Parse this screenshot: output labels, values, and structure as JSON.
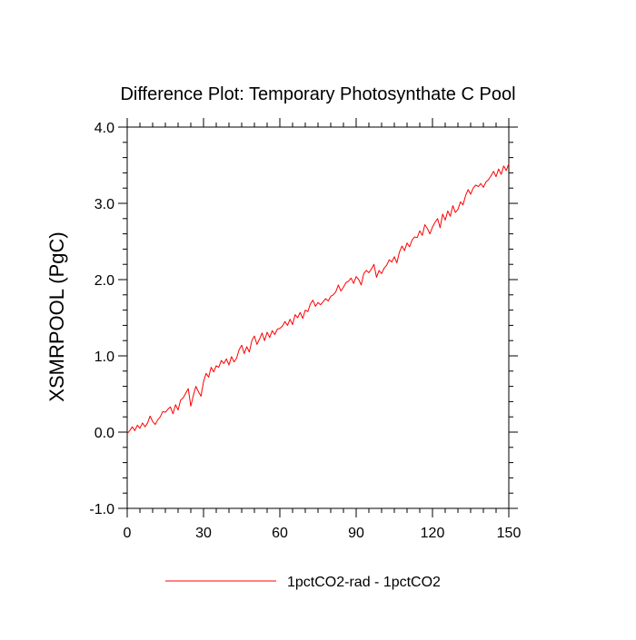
{
  "chart_data": {
    "type": "line",
    "title": "Difference Plot: Temporary Photosynthate C Pool",
    "ylabel": "XSMRPOOL  (PgC)",
    "xlabel": "",
    "xlim": [
      0,
      150
    ],
    "ylim": [
      -1.0,
      4.0
    ],
    "x_ticks": [
      0,
      30,
      60,
      90,
      120,
      150
    ],
    "x_tick_labels": [
      "0",
      "30",
      "60",
      "90",
      "120",
      "150"
    ],
    "y_ticks": [
      -1.0,
      0.0,
      1.0,
      2.0,
      3.0,
      4.0
    ],
    "y_tick_labels": [
      "-1.0",
      "0.0",
      "1.0",
      "2.0",
      "3.0",
      "4.0"
    ],
    "grid": false,
    "legend_position": "bottom",
    "series": [
      {
        "name": "1pctCO2-rad - 1pctCO2",
        "color": "#ff0000",
        "x": [
          0,
          1,
          2,
          3,
          4,
          5,
          6,
          7,
          8,
          9,
          10,
          11,
          12,
          13,
          14,
          15,
          16,
          17,
          18,
          19,
          20,
          21,
          22,
          23,
          24,
          25,
          26,
          27,
          28,
          29,
          30,
          31,
          32,
          33,
          34,
          35,
          36,
          37,
          38,
          39,
          40,
          41,
          42,
          43,
          44,
          45,
          46,
          47,
          48,
          49,
          50,
          51,
          52,
          53,
          54,
          55,
          56,
          57,
          58,
          59,
          60,
          61,
          62,
          63,
          64,
          65,
          66,
          67,
          68,
          69,
          70,
          71,
          72,
          73,
          74,
          75,
          76,
          77,
          78,
          79,
          80,
          81,
          82,
          83,
          84,
          85,
          86,
          87,
          88,
          89,
          90,
          91,
          92,
          93,
          94,
          95,
          96,
          97,
          98,
          99,
          100,
          101,
          102,
          103,
          104,
          105,
          106,
          107,
          108,
          109,
          110,
          111,
          112,
          113,
          114,
          115,
          116,
          117,
          118,
          119,
          120,
          121,
          122,
          123,
          124,
          125,
          126,
          127,
          128,
          129,
          130,
          131,
          132,
          133,
          134,
          135,
          136,
          137,
          138,
          139,
          140,
          141,
          142,
          143,
          144,
          145,
          146,
          147,
          148,
          149,
          150
        ],
        "y": [
          -0.02,
          0.02,
          0.07,
          0.02,
          0.09,
          0.05,
          0.12,
          0.07,
          0.12,
          0.21,
          0.14,
          0.1,
          0.16,
          0.2,
          0.27,
          0.26,
          0.3,
          0.33,
          0.24,
          0.36,
          0.29,
          0.42,
          0.45,
          0.51,
          0.57,
          0.34,
          0.48,
          0.6,
          0.53,
          0.47,
          0.66,
          0.77,
          0.72,
          0.85,
          0.79,
          0.87,
          0.85,
          0.94,
          0.9,
          0.96,
          0.88,
          0.99,
          0.92,
          0.97,
          1.08,
          1.14,
          1.03,
          1.12,
          1.05,
          1.2,
          1.26,
          1.15,
          1.22,
          1.3,
          1.2,
          1.31,
          1.24,
          1.33,
          1.28,
          1.35,
          1.36,
          1.39,
          1.45,
          1.4,
          1.48,
          1.41,
          1.54,
          1.5,
          1.57,
          1.49,
          1.6,
          1.58,
          1.68,
          1.73,
          1.65,
          1.7,
          1.67,
          1.71,
          1.75,
          1.72,
          1.78,
          1.8,
          1.84,
          1.93,
          1.85,
          1.9,
          1.96,
          1.98,
          2.02,
          1.95,
          2.04,
          2.0,
          1.93,
          2.08,
          2.12,
          2.09,
          2.14,
          2.2,
          2.03,
          2.12,
          2.08,
          2.15,
          2.19,
          2.26,
          2.23,
          2.3,
          2.22,
          2.36,
          2.44,
          2.38,
          2.48,
          2.43,
          2.52,
          2.56,
          2.55,
          2.64,
          2.58,
          2.72,
          2.67,
          2.6,
          2.69,
          2.75,
          2.8,
          2.68,
          2.86,
          2.78,
          2.9,
          2.83,
          2.97,
          2.88,
          2.92,
          3.02,
          2.98,
          3.1,
          3.18,
          3.12,
          3.2,
          3.24,
          3.22,
          3.26,
          3.21,
          3.28,
          3.31,
          3.36,
          3.42,
          3.35,
          3.45,
          3.38,
          3.49,
          3.43,
          3.52
        ]
      }
    ]
  }
}
